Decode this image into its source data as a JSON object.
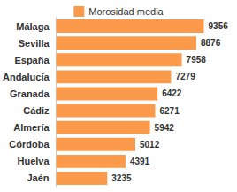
{
  "chart_data": {
    "type": "bar",
    "orientation": "horizontal",
    "categories": [
      "Málaga",
      "Sevilla",
      "España",
      "Andalucía",
      "Granada",
      "Cádiz",
      "Almería",
      "Córdoba",
      "Huelva",
      "Jaén"
    ],
    "series": [
      {
        "name": "Morosidad media",
        "color": "#fb9a4b",
        "values": [
          9356,
          8876,
          7958,
          7279,
          6422,
          6271,
          5942,
          5012,
          4391,
          3235
        ]
      }
    ],
    "xlim": [
      0,
      10000
    ],
    "grid": false,
    "legend": "top",
    "data_labels": true,
    "tick_labels": "y"
  }
}
